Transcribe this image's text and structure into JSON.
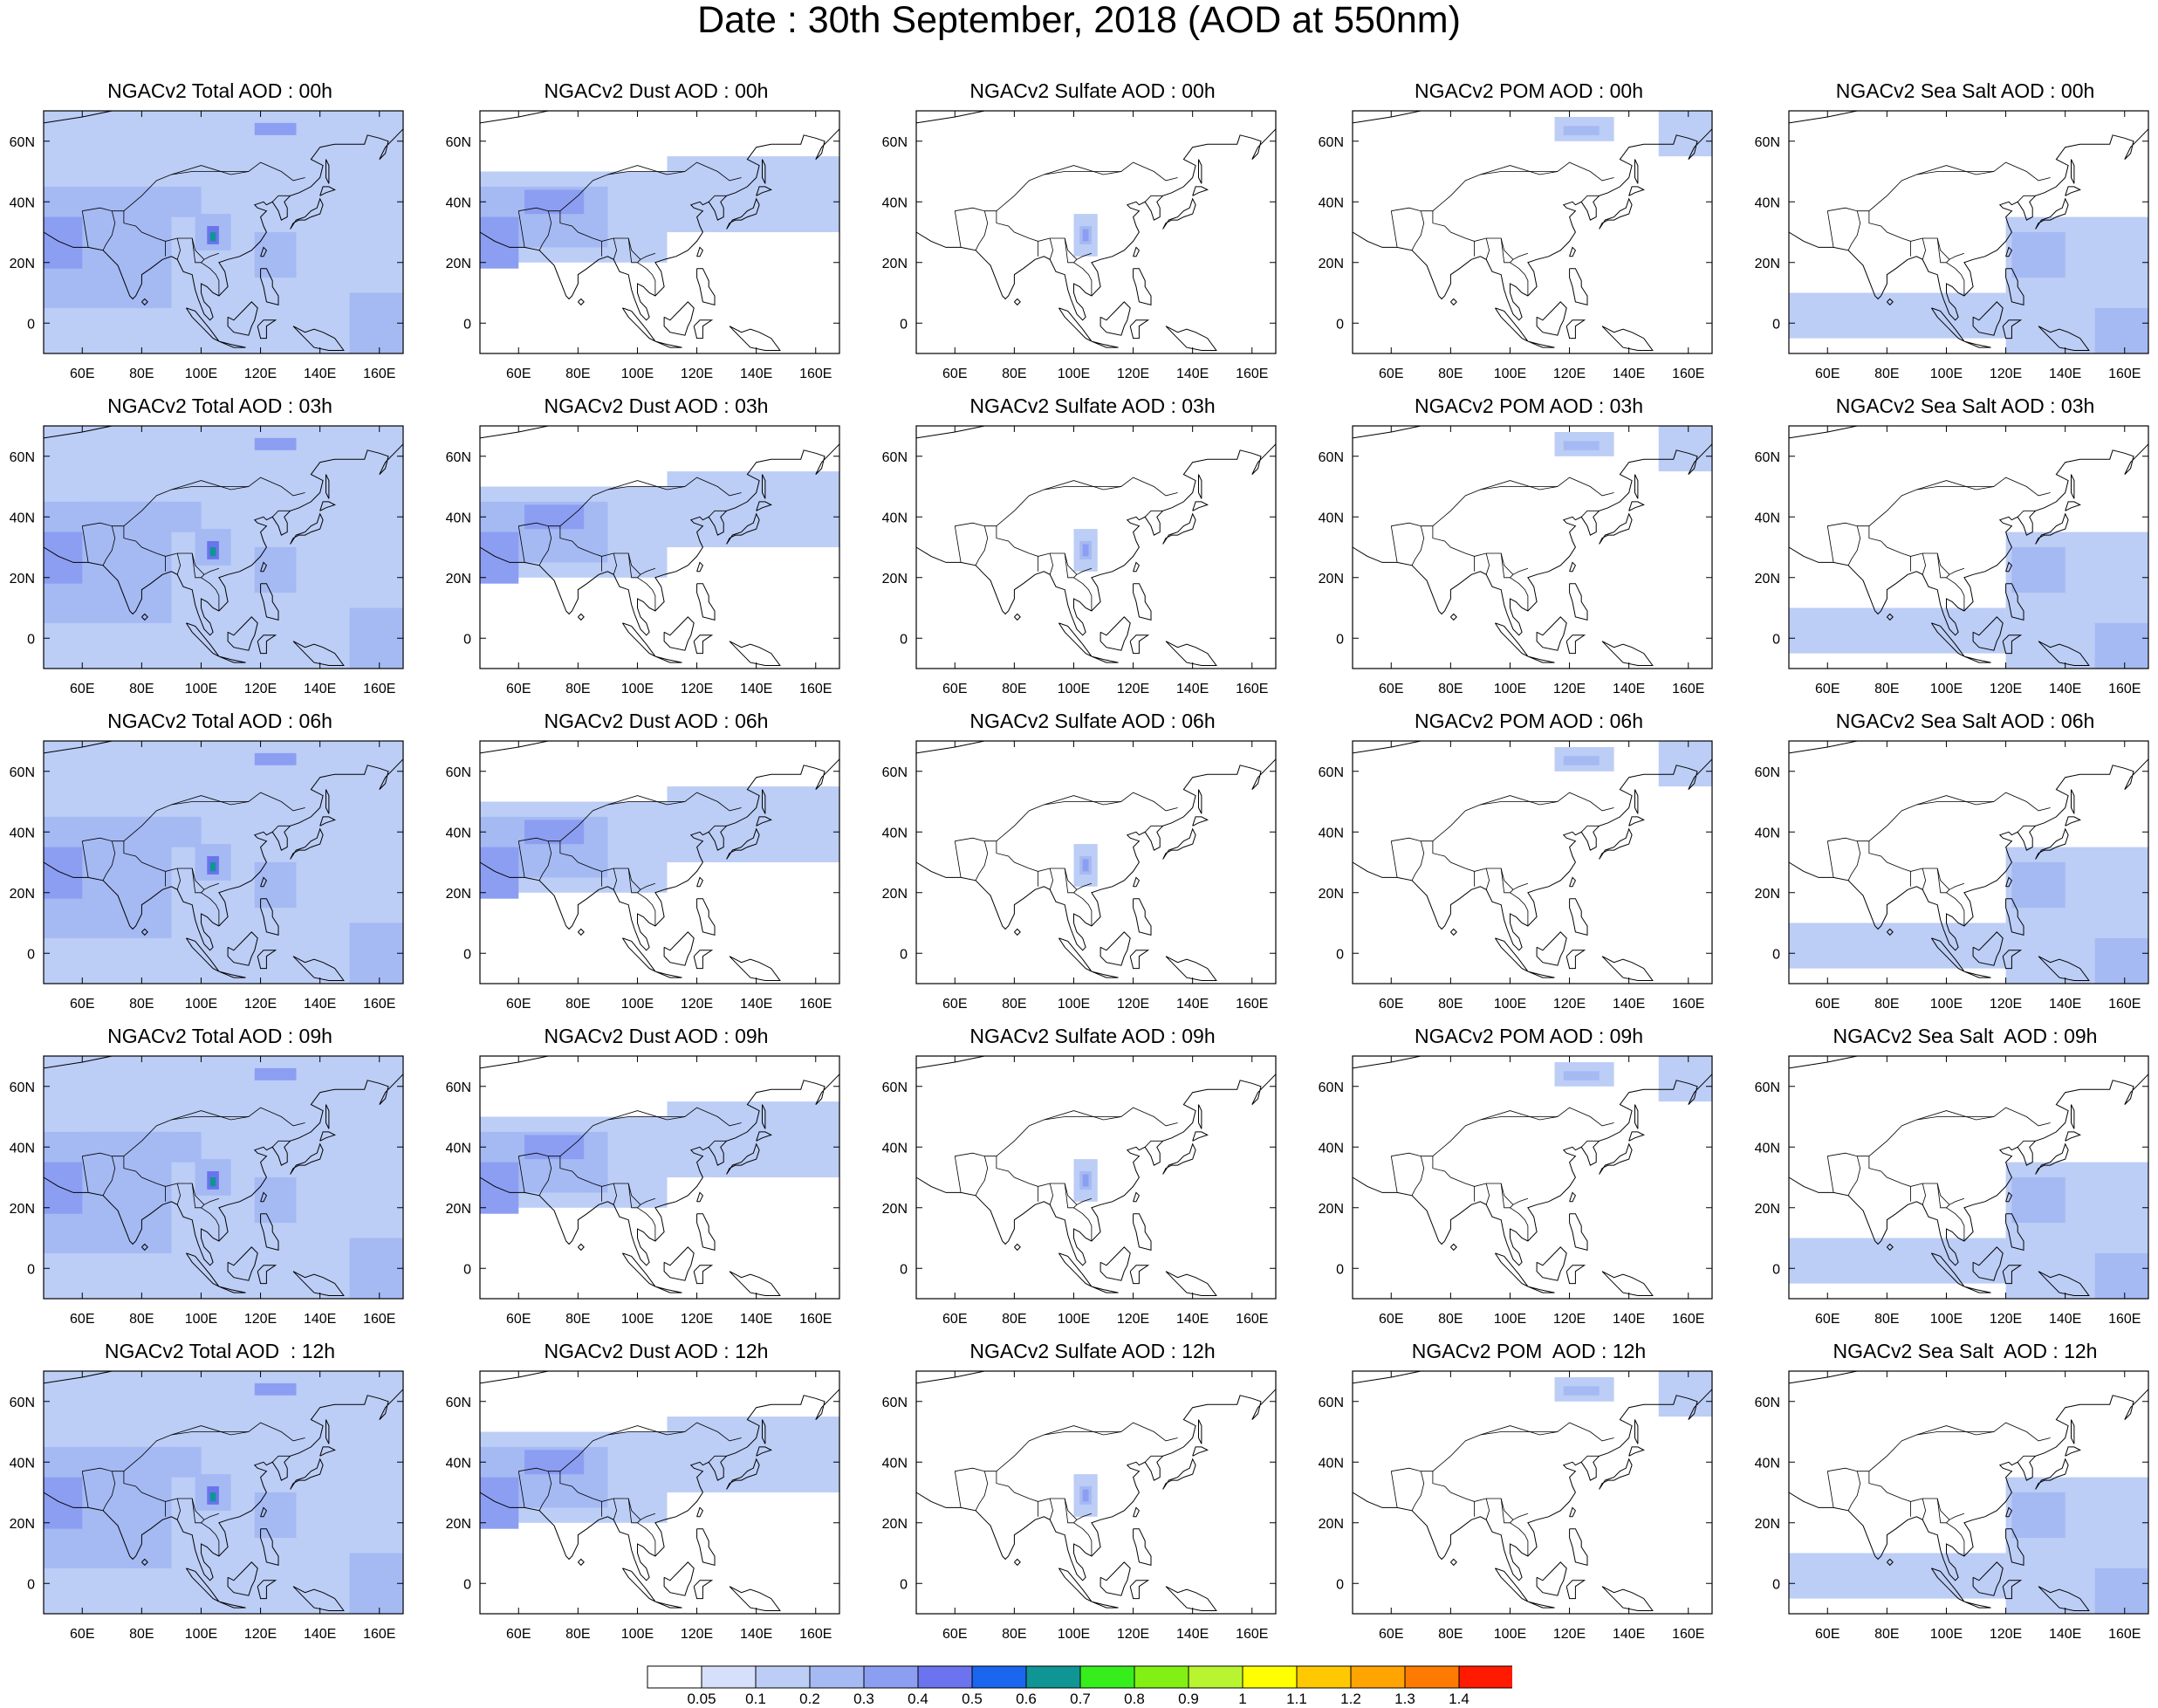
{
  "title": "Date : 30th September, 2018 (AOD at 550nm)",
  "map_axes": {
    "lon_range": [
      47,
      168
    ],
    "lat_range": [
      -10,
      70
    ],
    "lon_ticks": [
      "60E",
      "80E",
      "100E",
      "120E",
      "140E",
      "160E"
    ],
    "lat_ticks": [
      "60N",
      "40N",
      "20N",
      "0"
    ]
  },
  "panels": [
    {
      "title": "NGACv2 Total AOD : 00h",
      "species": "total",
      "hour": "00h"
    },
    {
      "title": "NGACv2 Dust AOD : 00h",
      "species": "dust",
      "hour": "00h"
    },
    {
      "title": "NGACv2 Sulfate AOD : 00h",
      "species": "sulfate",
      "hour": "00h"
    },
    {
      "title": "NGACv2 POM AOD : 00h",
      "species": "pom",
      "hour": "00h"
    },
    {
      "title": "NGACv2 Sea Salt AOD : 00h",
      "species": "seasalt",
      "hour": "00h"
    },
    {
      "title": "NGACv2 Total AOD : 03h",
      "species": "total",
      "hour": "03h"
    },
    {
      "title": "NGACv2 Dust AOD : 03h",
      "species": "dust",
      "hour": "03h"
    },
    {
      "title": "NGACv2 Sulfate AOD : 03h",
      "species": "sulfate",
      "hour": "03h"
    },
    {
      "title": "NGACv2 POM AOD : 03h",
      "species": "pom",
      "hour": "03h"
    },
    {
      "title": "NGACv2 Sea Salt AOD : 03h",
      "species": "seasalt",
      "hour": "03h"
    },
    {
      "title": "NGACv2 Total AOD : 06h",
      "species": "total",
      "hour": "06h"
    },
    {
      "title": "NGACv2 Dust AOD : 06h",
      "species": "dust",
      "hour": "06h"
    },
    {
      "title": "NGACv2 Sulfate AOD : 06h",
      "species": "sulfate",
      "hour": "06h"
    },
    {
      "title": "NGACv2 POM AOD : 06h",
      "species": "pom",
      "hour": "06h"
    },
    {
      "title": "NGACv2 Sea Salt AOD : 06h",
      "species": "seasalt",
      "hour": "06h"
    },
    {
      "title": "NGACv2 Total AOD : 09h",
      "species": "total",
      "hour": "09h"
    },
    {
      "title": "NGACv2 Dust AOD : 09h",
      "species": "dust",
      "hour": "09h"
    },
    {
      "title": "NGACv2 Sulfate AOD : 09h",
      "species": "sulfate",
      "hour": "09h"
    },
    {
      "title": "NGACv2 POM AOD : 09h",
      "species": "pom",
      "hour": "09h"
    },
    {
      "title": "NGACv2 Sea Salt  AOD : 09h",
      "species": "seasalt",
      "hour": "09h"
    },
    {
      "title": "NGACv2 Total AOD  : 12h",
      "species": "total",
      "hour": "12h"
    },
    {
      "title": "NGACv2 Dust AOD : 12h",
      "species": "dust",
      "hour": "12h"
    },
    {
      "title": "NGACv2 Sulfate AOD : 12h",
      "species": "sulfate",
      "hour": "12h"
    },
    {
      "title": "NGACv2 POM  AOD : 12h",
      "species": "pom",
      "hour": "12h"
    },
    {
      "title": "NGACv2 Sea Salt  AOD : 12h",
      "species": "seasalt",
      "hour": "12h"
    }
  ],
  "colorbar": {
    "labels": [
      "0.05",
      "0.1",
      "0.2",
      "0.3",
      "0.4",
      "0.5",
      "0.6",
      "0.7",
      "0.8",
      "0.9",
      "1",
      "1.1",
      "1.2",
      "1.3",
      "1.4"
    ],
    "colors": [
      "#ffffff",
      "#d6e0fa",
      "#bccdf6",
      "#a5b9f3",
      "#8c9ef2",
      "#6b74ee",
      "#1a66ee",
      "#109595",
      "#36ee1c",
      "#82f012",
      "#b8f530",
      "#ffff00",
      "#ffc800",
      "#ffa400",
      "#ff7a00",
      "#ff1a00"
    ]
  },
  "overlays": {
    "total": [
      {
        "lon": [
          47,
          168
        ],
        "lat": [
          -10,
          70
        ],
        "v": 0.1
      },
      {
        "lon": [
          47,
          90
        ],
        "lat": [
          5,
          45
        ],
        "v": 0.2
      },
      {
        "lon": [
          60,
          100
        ],
        "lat": [
          35,
          45
        ],
        "v": 0.2
      },
      {
        "lon": [
          47,
          60
        ],
        "lat": [
          18,
          35
        ],
        "v": 0.3
      },
      {
        "lon": [
          98,
          110
        ],
        "lat": [
          24,
          36
        ],
        "v": 0.2
      },
      {
        "lon": [
          102,
          106
        ],
        "lat": [
          26,
          32
        ],
        "v": 0.4
      },
      {
        "lon": [
          103,
          105
        ],
        "lat": [
          27,
          30
        ],
        "v": 0.6
      },
      {
        "lon": [
          118,
          132
        ],
        "lat": [
          15,
          30
        ],
        "v": 0.2
      },
      {
        "lon": [
          118,
          132
        ],
        "lat": [
          62,
          66
        ],
        "v": 0.3
      },
      {
        "lon": [
          150,
          168
        ],
        "lat": [
          -10,
          10
        ],
        "v": 0.2
      }
    ],
    "dust": [
      {
        "lon": [
          47,
          110
        ],
        "lat": [
          20,
          50
        ],
        "v": 0.1
      },
      {
        "lon": [
          110,
          168
        ],
        "lat": [
          30,
          55
        ],
        "v": 0.1
      },
      {
        "lon": [
          47,
          90
        ],
        "lat": [
          25,
          45
        ],
        "v": 0.2
      },
      {
        "lon": [
          47,
          60
        ],
        "lat": [
          18,
          35
        ],
        "v": 0.3
      },
      {
        "lon": [
          62,
          82
        ],
        "lat": [
          36,
          44
        ],
        "v": 0.3
      }
    ],
    "sulfate": [
      {
        "lon": [
          100,
          108
        ],
        "lat": [
          22,
          36
        ],
        "v": 0.1
      },
      {
        "lon": [
          102,
          106
        ],
        "lat": [
          26,
          32
        ],
        "v": 0.2
      },
      {
        "lon": [
          103,
          105
        ],
        "lat": [
          27,
          31
        ],
        "v": 0.3
      }
    ],
    "pom": [
      {
        "lon": [
          115,
          135
        ],
        "lat": [
          60,
          68
        ],
        "v": 0.1
      },
      {
        "lon": [
          118,
          130
        ],
        "lat": [
          62,
          65
        ],
        "v": 0.2
      },
      {
        "lon": [
          150,
          168
        ],
        "lat": [
          55,
          70
        ],
        "v": 0.1
      }
    ],
    "seasalt": [
      {
        "lon": [
          47,
          120
        ],
        "lat": [
          -5,
          10
        ],
        "v": 0.1
      },
      {
        "lon": [
          120,
          168
        ],
        "lat": [
          -10,
          35
        ],
        "v": 0.1
      },
      {
        "lon": [
          122,
          140
        ],
        "lat": [
          15,
          30
        ],
        "v": 0.2
      },
      {
        "lon": [
          150,
          168
        ],
        "lat": [
          -10,
          5
        ],
        "v": 0.2
      }
    ]
  }
}
